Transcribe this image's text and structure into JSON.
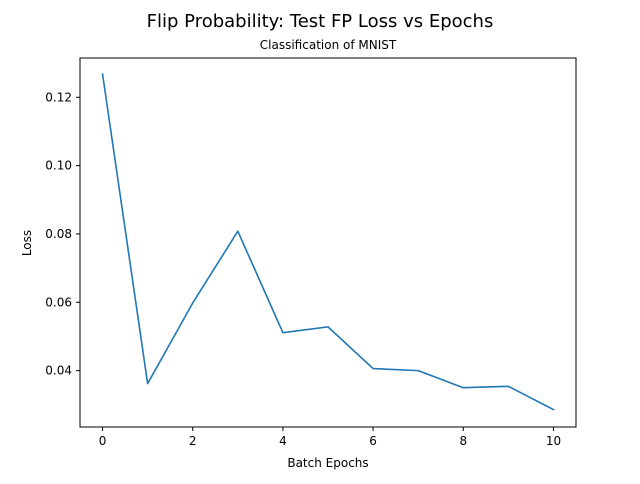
{
  "chart_data": {
    "type": "line",
    "title": "Flip Probability: Test FP Loss vs Epochs",
    "subtitle": "Classification of MNIST",
    "xlabel": "Batch Epochs",
    "ylabel": "Loss",
    "xlim": [
      -0.5,
      10.5
    ],
    "ylim": [
      0.0235,
      0.1315
    ],
    "xticks": [
      0,
      2,
      4,
      6,
      8,
      10
    ],
    "xtick_labels": [
      "0",
      "2",
      "4",
      "6",
      "8",
      "10"
    ],
    "yticks": [
      0.04,
      0.06,
      0.08,
      0.1,
      0.12
    ],
    "ytick_labels": [
      "0.04",
      "0.06",
      "0.08",
      "0.10",
      "0.12"
    ],
    "grid": false,
    "legend": "none",
    "series": [
      {
        "color": "#1f77b4",
        "x": [
          0,
          1,
          2,
          3,
          4,
          5,
          6,
          7,
          8,
          9,
          10
        ],
        "y": [
          0.1268,
          0.0362,
          0.0598,
          0.0808,
          0.0511,
          0.0528,
          0.0406,
          0.04,
          0.035,
          0.0354,
          0.0286
        ]
      }
    ]
  }
}
